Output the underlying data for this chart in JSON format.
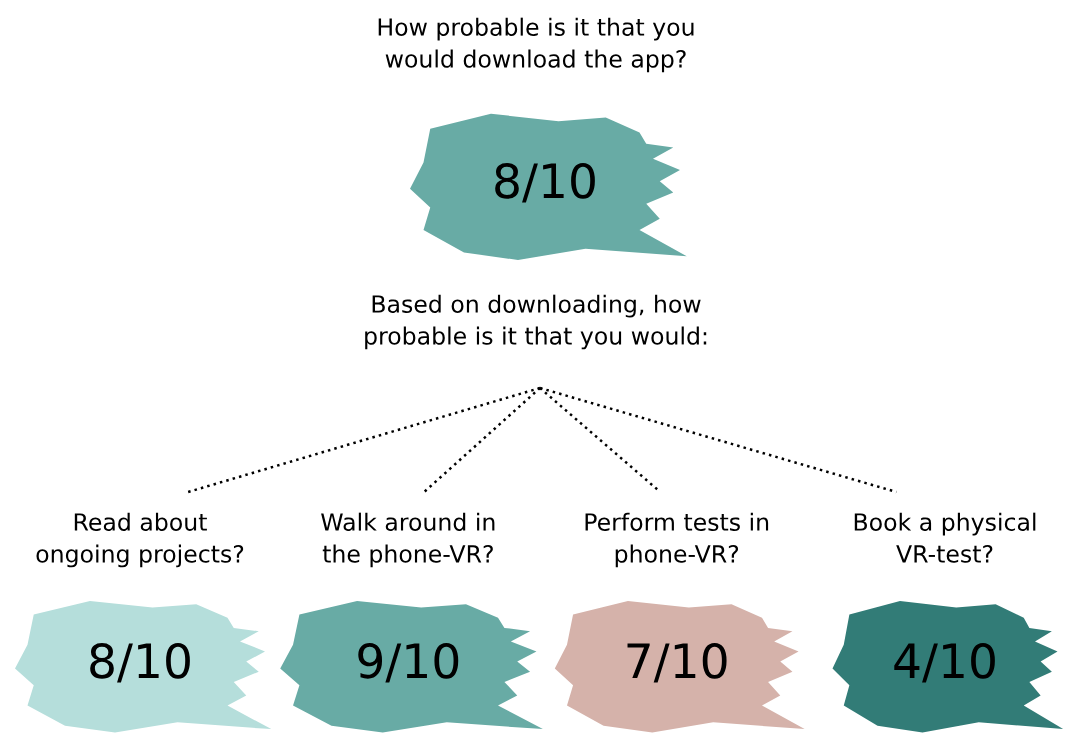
{
  "chart_data": {
    "type": "other",
    "title": "How probable is it that you\nwould download the app?",
    "subtitle": "Based on downloading, how\nprobable is it that you would:",
    "categories": [
      null,
      "Read about\nongoing projects?",
      "Walk around in\nthe phone-VR?",
      "Perform tests in\nphone-VR?",
      "Book a physical\nVR-test?"
    ],
    "values": [
      0.8,
      0.8,
      0.9,
      0.7,
      0.4
    ],
    "value_labels": [
      "8/10",
      "8/10",
      "9/10",
      "7/10",
      "4/10"
    ],
    "colors": [
      "#68aba5",
      "#b5dedb",
      "#68aba5",
      "#d5b2aa",
      "#327c77"
    ]
  }
}
